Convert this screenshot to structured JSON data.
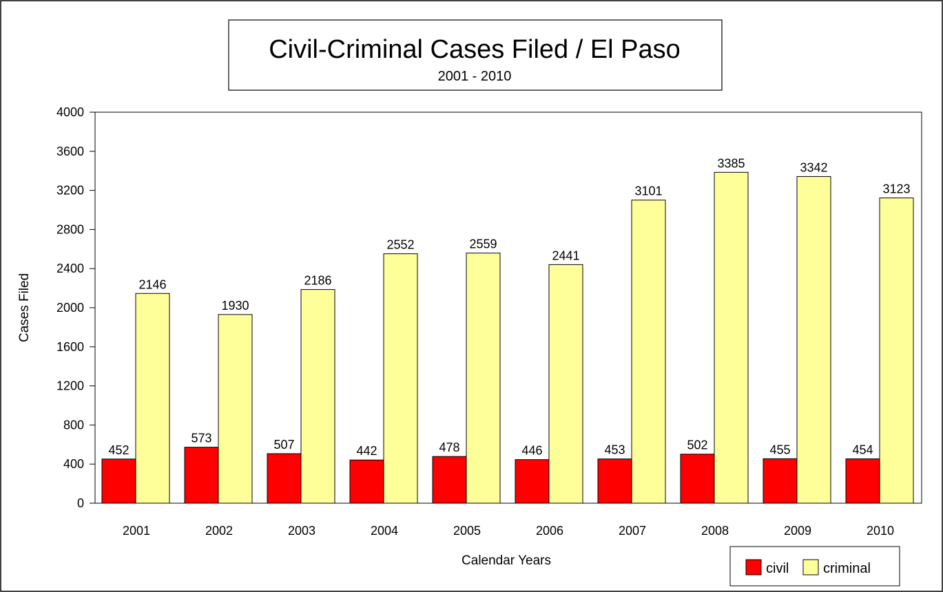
{
  "chart_data": {
    "type": "bar",
    "title": "Civil-Criminal Cases Filed / El Paso",
    "subtitle": "2001 - 2010",
    "xlabel": "Calendar Years",
    "ylabel": "Cases Filed",
    "ylim": [
      0,
      4000
    ],
    "yticks": [
      "0",
      "400",
      "800",
      "1200",
      "1600",
      "2000",
      "2400",
      "2800",
      "3200",
      "3600",
      "4000"
    ],
    "grid": false,
    "legend_position": "bottom-right",
    "categories": [
      "2001",
      "2002",
      "2003",
      "2004",
      "2005",
      "2006",
      "2007",
      "2008",
      "2009",
      "2010"
    ],
    "series": [
      {
        "name": "civil",
        "color": "#ff0000",
        "values": [
          452,
          573,
          507,
          442,
          478,
          446,
          453,
          502,
          455,
          454
        ]
      },
      {
        "name": "criminal",
        "color": "#ffff99",
        "values": [
          2146,
          1930,
          2186,
          2552,
          2559,
          2441,
          3101,
          3385,
          3342,
          3123
        ]
      }
    ]
  }
}
